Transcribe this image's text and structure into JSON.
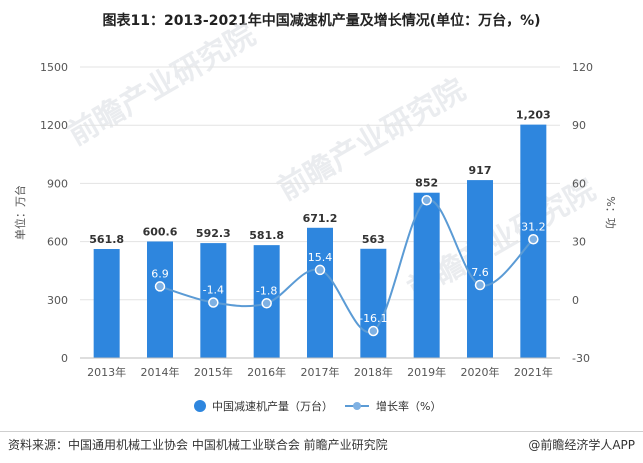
{
  "header": {
    "title": "图表11：2013-2021年中国减速机产量及增长情况(单位：万台，%)"
  },
  "watermarks": [
    "前瞻产业研究院",
    "前瞻产业研究院",
    "前瞻产业研究院"
  ],
  "footer": {
    "source": "资料来源：中国通用机械工业协会 中国机械工业联合会 前瞻产业研究院",
    "brand": "@前瞻经济学人APP"
  },
  "chart_data": {
    "type": "bar",
    "categories": [
      "2013年",
      "2014年",
      "2015年",
      "2016年",
      "2017年",
      "2018年",
      "2019年",
      "2020年",
      "2021年"
    ],
    "series": [
      {
        "name": "中国减速机产量（万台）",
        "type": "bar",
        "axis": "left",
        "values": [
          561.8,
          600.6,
          592.3,
          581.8,
          671.2,
          563,
          852,
          917,
          1203
        ],
        "labels": [
          "561.8",
          "600.6",
          "592.3",
          "581.8",
          "671.2",
          "563",
          "852",
          "917",
          "1,203"
        ],
        "color": "#2e86de"
      },
      {
        "name": "增长率（%）",
        "type": "line",
        "axis": "right",
        "values": [
          null,
          6.9,
          -1.4,
          -1.8,
          15.4,
          -16.1,
          51.3,
          7.6,
          31.2
        ],
        "labels": [
          "",
          "6.9",
          "-1.4",
          "-1.8",
          "15.4",
          "-16.1",
          "",
          "7.6",
          "31.2"
        ],
        "color": "#5b9bd5"
      }
    ],
    "ylabel": "单位：万台",
    "y2label": "%：功",
    "ylim": [
      0,
      1500
    ],
    "yticks": [
      0,
      300,
      600,
      900,
      1200,
      1500
    ],
    "y2lim": [
      -30,
      120
    ],
    "y2ticks": [
      -30,
      0,
      30,
      60,
      90,
      120
    ],
    "grid": true,
    "legend_position": "bottom"
  }
}
